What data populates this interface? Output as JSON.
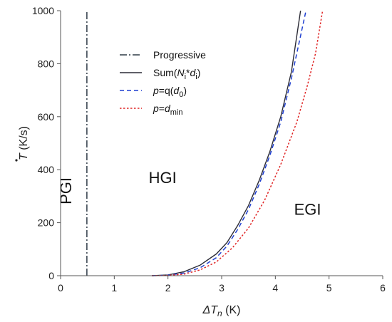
{
  "chart_data": {
    "type": "line",
    "xlabel_prefix": "ΔT",
    "xlabel_sub": "n",
    "xlabel_unit": " (K)",
    "ylabel_main": "T",
    "ylabel_unit": " (K/s)",
    "xlim": [
      0,
      6
    ],
    "ylim": [
      0,
      1000
    ],
    "x_ticks": [
      0,
      1,
      2,
      3,
      4,
      5,
      6
    ],
    "y_ticks": [
      0,
      200,
      400,
      600,
      800,
      1000
    ],
    "grid": false,
    "legend_position": "upper-left-inside",
    "series": [
      {
        "key": "progressive",
        "name": "Progressive",
        "color": "#2f3b47",
        "dash": "dashdot",
        "points": [
          [
            0.49,
            0
          ],
          [
            0.49,
            1000
          ]
        ]
      },
      {
        "key": "sum",
        "name_parts": [
          {
            "t": "Sum(",
            "style": "normal"
          },
          {
            "t": "N",
            "style": "italic"
          },
          {
            "t": "i",
            "style": "sub"
          },
          {
            "t": "*",
            "style": "normal"
          },
          {
            "t": "d",
            "style": "italic"
          },
          {
            "t": "i",
            "style": "sub"
          },
          {
            "t": ")",
            "style": "normal"
          }
        ],
        "color": "#2b2b36",
        "dash": "solid",
        "points": [
          [
            1.7,
            0
          ],
          [
            2.0,
            3
          ],
          [
            2.3,
            15
          ],
          [
            2.6,
            40
          ],
          [
            2.9,
            82
          ],
          [
            3.1,
            125
          ],
          [
            3.3,
            190
          ],
          [
            3.5,
            265
          ],
          [
            3.7,
            360
          ],
          [
            3.9,
            470
          ],
          [
            4.1,
            600
          ],
          [
            4.3,
            770
          ],
          [
            4.47,
            1000
          ]
        ]
      },
      {
        "key": "q_d0",
        "name_parts": [
          {
            "t": "p",
            "style": "italic"
          },
          {
            "t": "=q(",
            "style": "normal"
          },
          {
            "t": "d",
            "style": "italic"
          },
          {
            "t": "0",
            "style": "sub"
          },
          {
            "t": ")",
            "style": "normal"
          }
        ],
        "color": "#1f3fd0",
        "dash": "dashed",
        "points": [
          [
            1.7,
            0
          ],
          [
            2.0,
            2
          ],
          [
            2.3,
            10
          ],
          [
            2.6,
            30
          ],
          [
            2.9,
            68
          ],
          [
            3.1,
            112
          ],
          [
            3.3,
            175
          ],
          [
            3.5,
            250
          ],
          [
            3.7,
            345
          ],
          [
            3.9,
            455
          ],
          [
            4.1,
            580
          ],
          [
            4.3,
            745
          ],
          [
            4.57,
            1000
          ]
        ]
      },
      {
        "key": "dmin",
        "name_parts": [
          {
            "t": "p",
            "style": "italic"
          },
          {
            "t": "=",
            "style": "normal"
          },
          {
            "t": "d",
            "style": "italic"
          },
          {
            "t": "min",
            "style": "sub"
          }
        ],
        "color": "#e02424",
        "dash": "dotted",
        "points": [
          [
            1.7,
            0
          ],
          [
            2.0,
            1
          ],
          [
            2.3,
            6
          ],
          [
            2.6,
            22
          ],
          [
            2.9,
            52
          ],
          [
            3.2,
            105
          ],
          [
            3.5,
            180
          ],
          [
            3.8,
            285
          ],
          [
            4.1,
            420
          ],
          [
            4.4,
            580
          ],
          [
            4.6,
            720
          ],
          [
            4.75,
            840
          ],
          [
            4.88,
            1000
          ]
        ]
      }
    ],
    "annotations": [
      {
        "key": "pgi",
        "text": "PGI",
        "x": 0.2,
        "y": 320,
        "rotate": true
      },
      {
        "key": "hgi",
        "text": "HGI",
        "x": 1.9,
        "y": 350,
        "rotate": false
      },
      {
        "key": "egi",
        "text": "EGI",
        "x": 4.6,
        "y": 230,
        "rotate": false
      }
    ]
  }
}
